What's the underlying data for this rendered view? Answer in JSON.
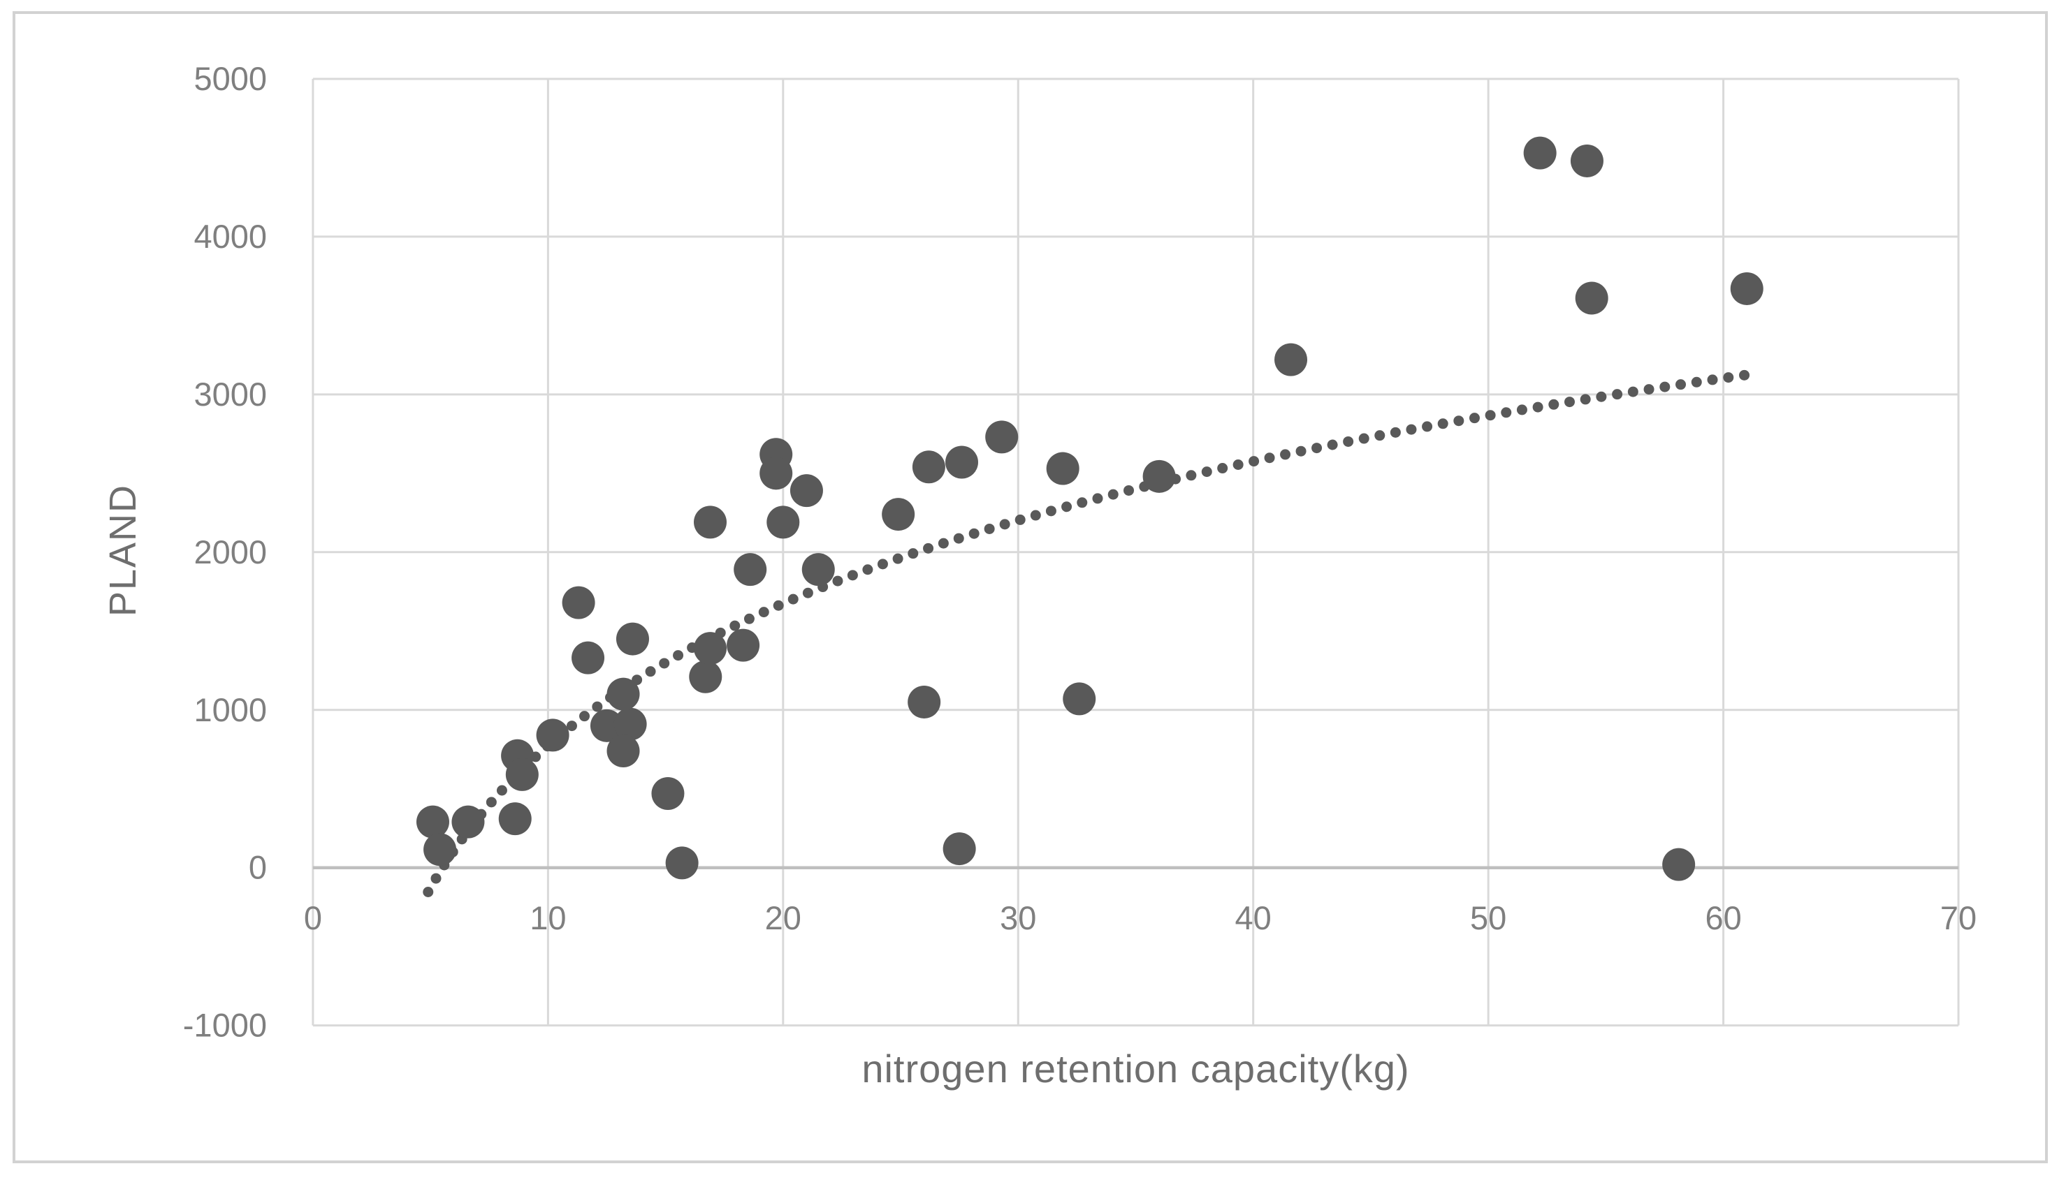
{
  "chart_data": {
    "type": "scatter",
    "title": "",
    "xlabel": "nitrogen retention capacity(kg)",
    "ylabel": "PLAND",
    "xlim": [
      0,
      70
    ],
    "ylim": [
      -1000,
      5000
    ],
    "x_ticks": [
      0,
      10,
      20,
      30,
      40,
      50,
      60,
      70
    ],
    "y_ticks": [
      -1000,
      0,
      1000,
      2000,
      3000,
      4000,
      5000
    ],
    "grid": true,
    "legend": "none",
    "points": [
      [
        5.1,
        290
      ],
      [
        5.4,
        115
      ],
      [
        6.6,
        290
      ],
      [
        8.6,
        310
      ],
      [
        8.7,
        710
      ],
      [
        8.9,
        590
      ],
      [
        10.2,
        840
      ],
      [
        11.3,
        1680
      ],
      [
        11.7,
        1330
      ],
      [
        12.5,
        900
      ],
      [
        13.5,
        910
      ],
      [
        13.2,
        1100
      ],
      [
        13.2,
        740
      ],
      [
        13.6,
        1450
      ],
      [
        15.1,
        470
      ],
      [
        15.7,
        30
      ],
      [
        16.7,
        1210
      ],
      [
        16.9,
        1390
      ],
      [
        18.3,
        1410
      ],
      [
        16.9,
        2190
      ],
      [
        18.6,
        1890
      ],
      [
        19.7,
        2620
      ],
      [
        19.7,
        2500
      ],
      [
        20.0,
        2190
      ],
      [
        21.0,
        2390
      ],
      [
        21.5,
        1890
      ],
      [
        24.9,
        2240
      ],
      [
        26.0,
        1050
      ],
      [
        26.2,
        2540
      ],
      [
        27.6,
        2570
      ],
      [
        27.5,
        120
      ],
      [
        29.3,
        2730
      ],
      [
        31.9,
        2530
      ],
      [
        32.6,
        1070
      ],
      [
        36.0,
        2480
      ],
      [
        41.6,
        3220
      ],
      [
        52.2,
        4530
      ],
      [
        54.2,
        4480
      ],
      [
        54.4,
        3610
      ],
      [
        58.1,
        20
      ],
      [
        61.0,
        3670
      ]
    ],
    "trendline": {
      "style": "dotted",
      "type": "logarithmic",
      "formula": "y = 1300*ln(x) - 2220",
      "a": 1300,
      "b": -2220,
      "x_start": 4.9,
      "x_end": 61.3
    }
  },
  "style": {
    "marker_color": "#595959",
    "marker_radius": 23.5,
    "trend_dot_radius": 7.5,
    "trend_dot_spacing": 23,
    "gridline_color": "#d9d9d9",
    "axis_line_color": "#bfbfbf",
    "tick_label_color": "#7f7f7f",
    "frame_color": "#d2d2d2",
    "background": "#ffffff"
  }
}
